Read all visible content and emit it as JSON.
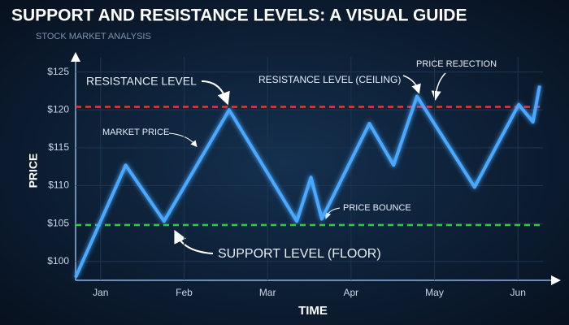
{
  "chart_data": {
    "type": "line",
    "title": "SUPPORT AND RESISTANCE LEVELS: A VISUAL GUIDE",
    "subtitle": "STOCK MARKET ANALYSIS",
    "x_label": "TIME",
    "y_label": "PRICE",
    "xlim": [
      -0.3,
      5.3
    ],
    "ylim": [
      97.5,
      127
    ],
    "xticks": [
      {
        "value": 0,
        "label": "Jan"
      },
      {
        "value": 1,
        "label": "Feb"
      },
      {
        "value": 2,
        "label": "Mar"
      },
      {
        "value": 3,
        "label": "Apr"
      },
      {
        "value": 4,
        "label": "May"
      },
      {
        "value": 5,
        "label": "Jun"
      }
    ],
    "yticks": [
      {
        "value": 100,
        "label": "$100"
      },
      {
        "value": 105,
        "label": "$105"
      },
      {
        "value": 110,
        "label": "$110"
      },
      {
        "value": 115,
        "label": "$115"
      },
      {
        "value": 120,
        "label": "$120"
      },
      {
        "value": 125,
        "label": "$125"
      }
    ],
    "series": [
      {
        "color": "#4aa8ff",
        "x": [
          -0.3,
          0.3,
          0.76,
          1.54,
          2.35,
          2.52,
          2.65,
          3.22,
          3.51,
          3.79,
          4.48,
          5.01,
          5.18,
          5.26
        ],
        "values": [
          97.9,
          112.7,
          105.3,
          120.0,
          105.3,
          111.1,
          105.6,
          118.2,
          112.7,
          121.8,
          109.8,
          120.7,
          118.4,
          123.2
        ]
      }
    ],
    "resistance": {
      "value": 120.4,
      "color": "#e53935"
    },
    "support": {
      "value": 104.8,
      "color": "#2ecc40"
    },
    "annotations": [
      "RESISTANCE LEVEL",
      "RESISTANCE LEVEL (CEILING)",
      "PRICE REJECTION",
      "MARKET PRICE",
      "PRICE BOUNCE",
      "SUPPORT LEVEL (FLOOR)"
    ]
  }
}
